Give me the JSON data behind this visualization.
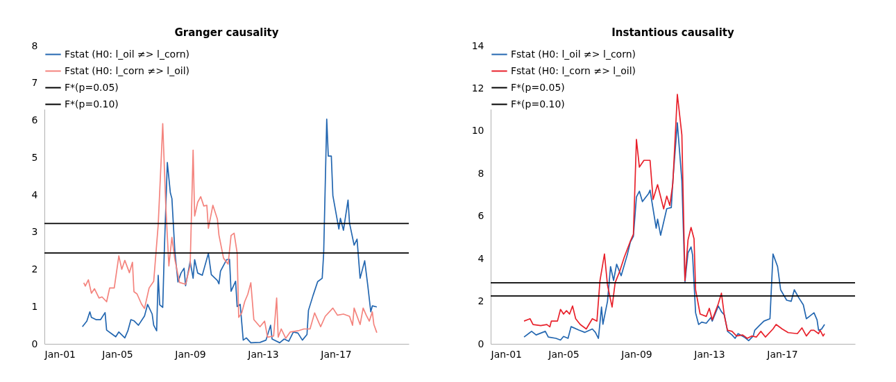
{
  "chart_data": [
    {
      "type": "line",
      "title": "Granger causality",
      "legend": "top left",
      "grid": false,
      "xlim": [
        "2001-01",
        "2021-01"
      ],
      "xticks": [
        {
          "value": "2001-01",
          "label": "Jan-01"
        },
        {
          "value": "2005-01",
          "label": "Jan-05"
        },
        {
          "value": "2009-01",
          "label": "Jan-09"
        },
        {
          "value": "2013-01",
          "label": "Jan-13"
        },
        {
          "value": "2017-01",
          "label": "Jan-17"
        }
      ],
      "ylim": [
        0,
        8
      ],
      "yticks": [
        0,
        1,
        2,
        3,
        4,
        5,
        6,
        7,
        8
      ],
      "series": [
        {
          "name": "Fstat (H0: l_oil ≠> l_corn)",
          "color": "#2266b0",
          "x": [
            "2003-02",
            "2003-05",
            "2003-07",
            "2003-08",
            "2003-11",
            "2004-02",
            "2004-05",
            "2004-06",
            "2004-09",
            "2004-12",
            "2005-02",
            "2005-06",
            "2005-08",
            "2005-10",
            "2005-12",
            "2006-03",
            "2006-07",
            "2006-09",
            "2006-12",
            "2007-01",
            "2007-03",
            "2007-04",
            "2007-05",
            "2007-07",
            "2007-08",
            "2007-10",
            "2007-12",
            "2008-01",
            "2008-03",
            "2008-05",
            "2008-07",
            "2008-09",
            "2008-10",
            "2009-01",
            "2009-03",
            "2009-04",
            "2009-06",
            "2009-09",
            "2010-01",
            "2010-03",
            "2010-07",
            "2010-08",
            "2010-09",
            "2011-01",
            "2011-03",
            "2011-04",
            "2011-07",
            "2011-08",
            "2011-10",
            "2011-12",
            "2012-02",
            "2012-05",
            "2012-11",
            "2013-03",
            "2013-06",
            "2013-07",
            "2013-12",
            "2014-03",
            "2014-06",
            "2014-09",
            "2014-12",
            "2015-03",
            "2015-06",
            "2015-07",
            "2015-10",
            "2016-01",
            "2016-04",
            "2016-05",
            "2016-07",
            "2016-08",
            "2016-10",
            "2016-11",
            "2017-03",
            "2017-04",
            "2017-06",
            "2017-09",
            "2017-10",
            "2018-01",
            "2018-03",
            "2018-05",
            "2018-08",
            "2018-10",
            "2018-12",
            "2019-01",
            "2019-04"
          ],
          "values": [
            0.46,
            0.61,
            0.86,
            0.71,
            0.65,
            0.65,
            0.84,
            0.37,
            0.28,
            0.19,
            0.32,
            0.16,
            0.35,
            0.65,
            0.62,
            0.5,
            0.75,
            1.06,
            0.8,
            0.5,
            0.35,
            1.84,
            1.05,
            0.98,
            2.46,
            4.87,
            4.05,
            3.9,
            2.46,
            1.66,
            1.9,
            2.03,
            1.56,
            2.21,
            1.76,
            2.26,
            1.9,
            1.84,
            2.43,
            1.86,
            1.7,
            1.61,
            1.95,
            2.26,
            2.27,
            1.41,
            1.68,
            1.0,
            1.06,
            0.1,
            0.16,
            0.03,
            0.04,
            0.1,
            0.5,
            0.13,
            0.03,
            0.13,
            0.07,
            0.32,
            0.29,
            0.1,
            0.25,
            0.9,
            1.3,
            1.67,
            1.76,
            2.44,
            6.03,
            5.04,
            5.04,
            3.98,
            3.08,
            3.37,
            3.05,
            3.86,
            3.24,
            2.65,
            2.81,
            1.76,
            2.23,
            1.58,
            0.86,
            1.02,
            0.99
          ]
        },
        {
          "name": "Fstat (H0: l_corn ≠> l_oil)",
          "color": "#f4837d",
          "x": [
            "2003-03",
            "2003-04",
            "2003-06",
            "2003-08",
            "2003-10",
            "2004-01",
            "2004-03",
            "2004-06",
            "2004-08",
            "2004-11",
            "2005-02",
            "2005-04",
            "2005-06",
            "2005-09",
            "2005-11",
            "2005-12",
            "2006-02",
            "2006-05",
            "2006-07",
            "2006-10",
            "2007-01",
            "2007-04",
            "2007-06",
            "2007-07",
            "2007-09",
            "2007-11",
            "2008-01",
            "2008-03",
            "2008-06",
            "2008-10",
            "2009-01",
            "2009-03",
            "2009-04",
            "2009-06",
            "2009-08",
            "2009-10",
            "2009-12",
            "2010-01",
            "2010-04",
            "2010-07",
            "2010-08",
            "2010-11",
            "2011-02",
            "2011-04",
            "2011-06",
            "2011-08",
            "2011-09",
            "2011-11",
            "2012-01",
            "2012-03",
            "2012-05",
            "2012-07",
            "2012-11",
            "2013-02",
            "2013-04",
            "2013-08",
            "2013-10",
            "2013-11",
            "2014-01",
            "2014-04",
            "2014-07",
            "2014-12",
            "2015-04",
            "2015-08",
            "2015-11",
            "2016-03",
            "2016-06",
            "2016-11",
            "2017-02",
            "2017-06",
            "2017-10",
            "2017-12",
            "2018-01",
            "2018-05",
            "2018-07",
            "2018-09",
            "2018-11",
            "2019-01",
            "2019-02",
            "2019-04"
          ],
          "values": [
            1.64,
            1.55,
            1.72,
            1.36,
            1.48,
            1.23,
            1.26,
            1.13,
            1.5,
            1.5,
            2.36,
            2.0,
            2.24,
            1.91,
            2.19,
            1.4,
            1.34,
            1.07,
            0.95,
            1.5,
            1.68,
            3.19,
            4.98,
            5.91,
            3.67,
            2.09,
            2.86,
            2.26,
            1.65,
            1.6,
            2.1,
            5.2,
            3.43,
            3.8,
            3.95,
            3.7,
            3.72,
            3.1,
            3.72,
            3.35,
            2.92,
            2.3,
            2.14,
            2.91,
            2.97,
            2.44,
            0.71,
            0.83,
            1.14,
            1.33,
            1.64,
            0.65,
            0.46,
            0.61,
            0.18,
            0.21,
            1.23,
            0.18,
            0.4,
            0.15,
            0.32,
            0.35,
            0.4,
            0.4,
            0.83,
            0.46,
            0.74,
            0.96,
            0.77,
            0.8,
            0.74,
            0.5,
            0.96,
            0.52,
            0.96,
            0.77,
            0.61,
            0.86,
            0.52,
            0.3
          ]
        },
        {
          "name": "F*(p=0.05)",
          "type": "line",
          "color": "#000000",
          "x": [
            "2001-01",
            "2021-01"
          ],
          "values": [
            3.23,
            3.23
          ]
        },
        {
          "name": "F*(p=0.10)",
          "type": "line",
          "color": "#000000",
          "x": [
            "2001-01",
            "2021-01"
          ],
          "values": [
            2.44,
            2.44
          ]
        }
      ]
    },
    {
      "type": "line",
      "title": "Instantious causality",
      "legend": "top left",
      "grid": false,
      "xlim": [
        "2001-01",
        "2021-01"
      ],
      "xticks": [
        {
          "value": "2001-01",
          "label": "Jan-01"
        },
        {
          "value": "2005-01",
          "label": "Jan-05"
        },
        {
          "value": "2009-01",
          "label": "Jan-09"
        },
        {
          "value": "2013-01",
          "label": "Jan-13"
        },
        {
          "value": "2017-01",
          "label": "Jan-17"
        }
      ],
      "ylim": [
        0,
        14
      ],
      "yticks": [
        0,
        2,
        4,
        6,
        8,
        10,
        12,
        14
      ],
      "series": [
        {
          "name": "Fstat (H0: l_oil ≠> l_corn)",
          "color": "#2266b0",
          "x": [
            "2002-11",
            "2003-04",
            "2003-07",
            "2004-01",
            "2004-03",
            "2004-08",
            "2004-11",
            "2005-01",
            "2005-04",
            "2005-06",
            "2005-11",
            "2006-03",
            "2006-08",
            "2006-10",
            "2006-12",
            "2007-02",
            "2007-03",
            "2007-06",
            "2007-08",
            "2007-10",
            "2007-12",
            "2008-03",
            "2008-07",
            "2008-09",
            "2008-11",
            "2009-01",
            "2009-03",
            "2009-05",
            "2009-09",
            "2009-10",
            "2010-02",
            "2010-03",
            "2010-05",
            "2010-09",
            "2010-12",
            "2011-01",
            "2011-04",
            "2011-07",
            "2011-09",
            "2011-11",
            "2012-01",
            "2012-02",
            "2012-04",
            "2012-06",
            "2012-08",
            "2012-11",
            "2013-02",
            "2013-03",
            "2013-07",
            "2013-09",
            "2013-11",
            "2014-01",
            "2014-04",
            "2014-06",
            "2014-08",
            "2014-12",
            "2015-03",
            "2015-06",
            "2015-07",
            "2015-10",
            "2016-01",
            "2016-05",
            "2016-07",
            "2016-10",
            "2016-12",
            "2017-04",
            "2017-07",
            "2017-09",
            "2017-12",
            "2018-03",
            "2018-05",
            "2018-07",
            "2018-10",
            "2018-12",
            "2019-01",
            "2019-03",
            "2019-05"
          ],
          "values": [
            0.32,
            0.59,
            0.42,
            0.59,
            0.32,
            0.26,
            0.18,
            0.35,
            0.26,
            0.81,
            0.65,
            0.54,
            0.7,
            0.54,
            0.26,
            1.73,
            0.92,
            2.0,
            3.63,
            2.98,
            3.74,
            3.2,
            4.18,
            4.78,
            5.05,
            6.9,
            7.17,
            6.68,
            7.06,
            7.22,
            5.43,
            5.86,
            5.1,
            6.35,
            6.4,
            7.66,
            10.38,
            7.66,
            2.92,
            4.28,
            4.55,
            4.17,
            1.46,
            0.91,
            1.02,
            0.97,
            1.24,
            1.07,
            1.78,
            1.51,
            1.35,
            0.59,
            0.42,
            0.26,
            0.48,
            0.32,
            0.15,
            0.37,
            0.64,
            0.86,
            1.07,
            1.18,
            4.22,
            3.63,
            2.54,
            2.05,
            2.0,
            2.54,
            2.16,
            1.83,
            1.18,
            1.29,
            1.46,
            1.13,
            0.64,
            0.69,
            0.91
          ]
        },
        {
          "name": "Fstat (H0: l_corn ≠> l_oil)",
          "color": "#e8202a",
          "x": [
            "2002-11",
            "2003-03",
            "2003-05",
            "2003-10",
            "2004-02",
            "2004-04",
            "2004-05",
            "2004-09",
            "2004-11",
            "2005-01",
            "2005-03",
            "2005-05",
            "2005-07",
            "2005-09",
            "2005-12",
            "2006-04",
            "2006-08",
            "2006-11",
            "2007-01",
            "2007-04",
            "2007-06",
            "2007-09",
            "2007-11",
            "2008-02",
            "2008-05",
            "2008-09",
            "2008-11",
            "2009-01",
            "2009-03",
            "2009-06",
            "2009-10",
            "2009-12",
            "2010-03",
            "2010-07",
            "2010-09",
            "2010-11",
            "2011-01",
            "2011-04",
            "2011-07",
            "2011-09",
            "2011-11",
            "2012-01",
            "2012-03",
            "2012-04",
            "2012-07",
            "2012-11",
            "2013-01",
            "2013-03",
            "2013-07",
            "2013-09",
            "2013-11",
            "2014-01",
            "2014-04",
            "2014-07",
            "2014-11",
            "2015-02",
            "2015-05",
            "2015-08",
            "2015-11",
            "2016-02",
            "2016-07",
            "2016-09",
            "2017-01",
            "2017-05",
            "2017-11",
            "2018-02",
            "2018-05",
            "2018-08",
            "2018-10",
            "2019-01",
            "2019-02",
            "2019-04",
            "2019-05"
          ],
          "values": [
            1.07,
            1.18,
            0.91,
            0.86,
            0.91,
            0.8,
            1.07,
            1.07,
            1.62,
            1.4,
            1.56,
            1.4,
            1.78,
            1.18,
            0.91,
            0.7,
            1.18,
            1.07,
            2.97,
            4.22,
            2.76,
            1.73,
            2.87,
            3.41,
            4.06,
            4.82,
            5.15,
            9.6,
            8.3,
            8.62,
            8.62,
            6.78,
            7.48,
            6.34,
            6.94,
            6.5,
            7.53,
            11.72,
            9.81,
            2.97,
            4.88,
            5.47,
            4.93,
            2.54,
            1.4,
            1.29,
            1.67,
            1.13,
            1.89,
            2.38,
            1.29,
            0.64,
            0.59,
            0.37,
            0.42,
            0.26,
            0.37,
            0.32,
            0.59,
            0.32,
            0.7,
            0.91,
            0.7,
            0.53,
            0.48,
            0.75,
            0.37,
            0.64,
            0.64,
            0.48,
            0.64,
            0.37,
            0.48
          ]
        },
        {
          "name": "F*(p=0.05)",
          "type": "line",
          "color": "#000000",
          "x": [
            "2001-01",
            "2021-01"
          ],
          "values": [
            2.87,
            2.87
          ]
        },
        {
          "name": "F*(p=0.10)",
          "type": "line",
          "color": "#000000",
          "x": [
            "2001-01",
            "2021-01"
          ],
          "values": [
            2.25,
            2.25
          ]
        }
      ]
    }
  ]
}
